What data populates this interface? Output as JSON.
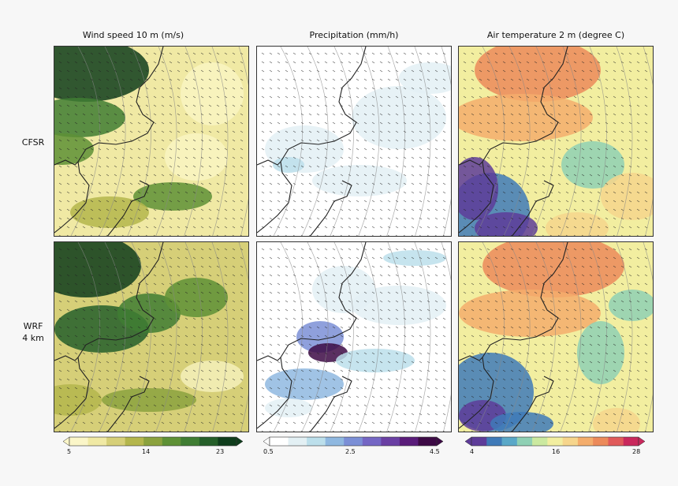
{
  "chart_data": [
    {
      "type": "heatmap",
      "title": "Wind speed 10 m (m/s)",
      "rows": [
        "CFSR",
        "WRF\n4 km"
      ],
      "colorbar": {
        "min": 5,
        "max": 23,
        "ticks": [
          5,
          14,
          23
        ],
        "cmap": "yellow-olive-green"
      }
    },
    {
      "type": "heatmap",
      "title": "Precipitation (mm/h)",
      "rows": [
        "CFSR",
        "WRF\n4 km"
      ],
      "colorbar": {
        "min": 0.5,
        "max": 4.5,
        "ticks": [
          0.5,
          2.5,
          4.5
        ],
        "cmap": "white-blue-purple"
      }
    },
    {
      "type": "heatmap",
      "title": "Air temperature 2 m (degree C)",
      "rows": [
        "CFSR",
        "WRF\n4 km"
      ],
      "colorbar": {
        "min": 4,
        "max": 28,
        "ticks": [
          4,
          16,
          28
        ],
        "cmap": "spectral-reversed"
      }
    }
  ],
  "columns": [
    {
      "title": "Wind speed 10 m (m/s)",
      "ticks": [
        "5",
        "14",
        "23"
      ]
    },
    {
      "title": "Precipitation (mm/h)",
      "ticks": [
        "0.5",
        "2.5",
        "4.5"
      ]
    },
    {
      "title": "Air temperature 2 m (degree C)",
      "ticks": [
        "4",
        "16",
        "28"
      ]
    }
  ],
  "rows": [
    {
      "label": "CFSR"
    },
    {
      "label_line1": "WRF",
      "label_line2": "4 km"
    }
  ],
  "colors": {
    "wind": [
      "#fbf6c8",
      "#f0e9a4",
      "#d6cf78",
      "#b4b64c",
      "#8ba23e",
      "#5e9136",
      "#3f7d33",
      "#255f2a",
      "#0f3d1c"
    ],
    "precip": [
      "#ffffff",
      "#e3f0f4",
      "#bcdfeb",
      "#8fb8e0",
      "#7b8fd6",
      "#7466c4",
      "#6a3fa3",
      "#5a1c7a",
      "#3d0a45"
    ],
    "temp": [
      "#5e3c99",
      "#3f7ab8",
      "#5aa8c8",
      "#8fd0b4",
      "#cbe9a0",
      "#f2eea0",
      "#f6d58c",
      "#f4ad6c",
      "#ec8a5a",
      "#e05a5a",
      "#c9285c"
    ]
  }
}
